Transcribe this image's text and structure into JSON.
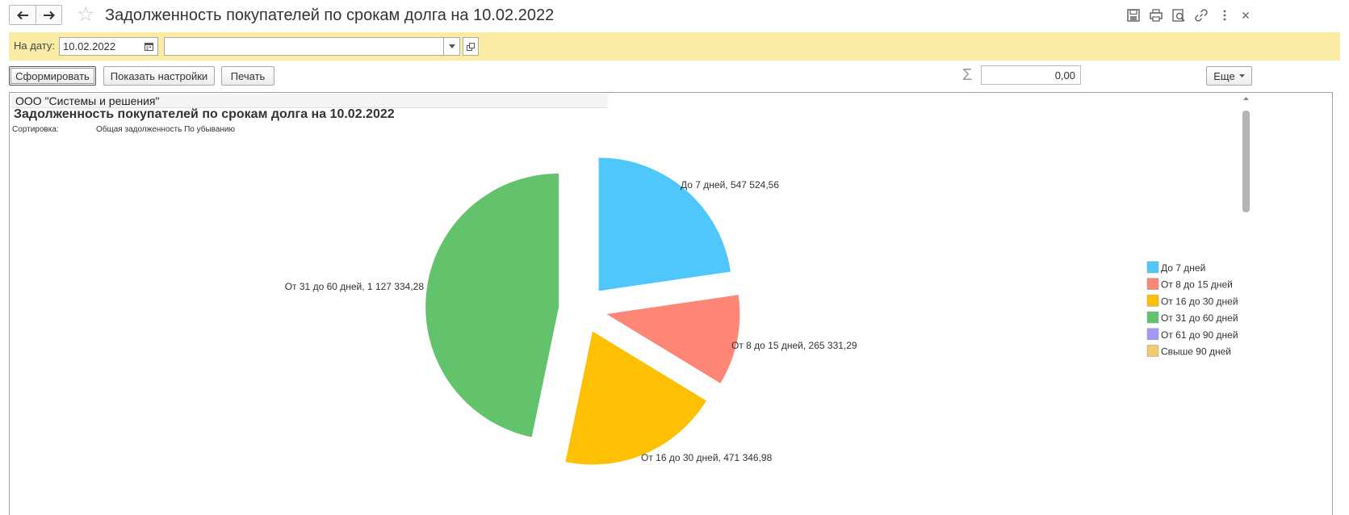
{
  "window": {
    "title": "Задолженность покупателей по срокам долга на 10.02.2022"
  },
  "params": {
    "date_label": "На дату:",
    "date_value": "10.02.2022",
    "org_value": ""
  },
  "toolbar": {
    "generate_label": "Сформировать",
    "settings_label": "Показать настройки",
    "print_label": "Печать",
    "sum_value": "0,00",
    "more_label": "Еще"
  },
  "report": {
    "org": "ООО \"Системы и решения\"",
    "title": "Задолженность покупателей по срокам долга на 10.02.2022",
    "sort_label": "Сортировка:",
    "sort_value": "Общая задолженность По убыванию"
  },
  "chart_data": {
    "type": "pie",
    "exploded": true,
    "slices": [
      {
        "name": "До 7 дней",
        "value": 547524.56,
        "label": "До 7 дней, 547 524,56",
        "color": "#4fc7fb"
      },
      {
        "name": "От 8 до 15 дней",
        "value": 265331.29,
        "label": "От 8 до 15 дней, 265 331,29",
        "color": "#fe8677"
      },
      {
        "name": "От 16 до 30 дней",
        "value": 471346.98,
        "label": "От 16 до 30 дней, 471 346,98",
        "color": "#fdc003"
      },
      {
        "name": "От 31 до 60 дней",
        "value": 1127334.28,
        "label": "От 31 до 60 дней, 1 127 334,28",
        "color": "#62c36c"
      }
    ],
    "legend": [
      {
        "name": "До 7 дней",
        "color": "#4fc7fb"
      },
      {
        "name": "От 8 до 15 дней",
        "color": "#fe8677"
      },
      {
        "name": "От 16 до 30 дней",
        "color": "#fdc003"
      },
      {
        "name": "От 31 до 60 дней",
        "color": "#62c36c"
      },
      {
        "name": "От 61 до 90 дней",
        "color": "#a19af5"
      },
      {
        "name": "Свыше 90 дней",
        "color": "#f0ca6e"
      }
    ],
    "legend_position": "right"
  }
}
